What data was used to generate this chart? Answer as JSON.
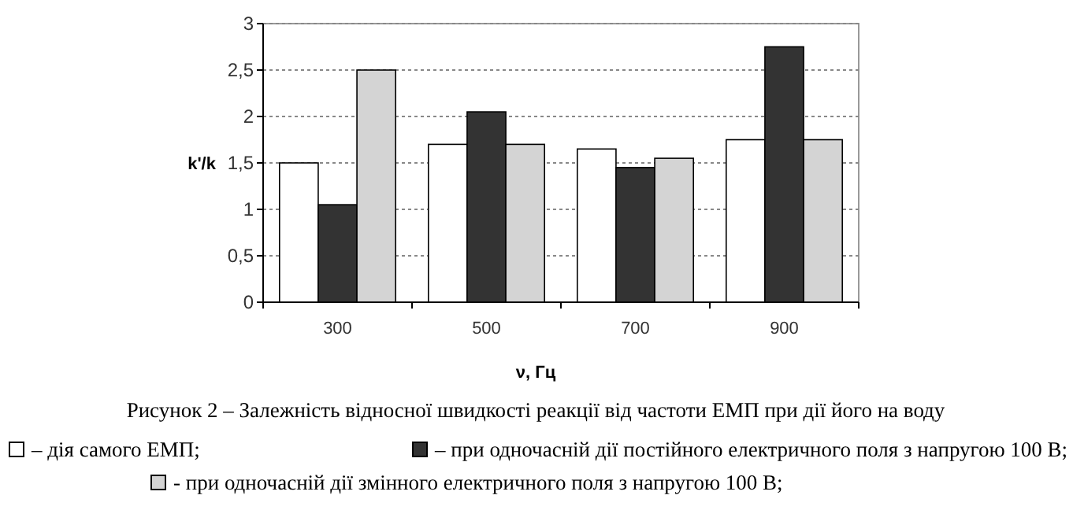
{
  "chart_data": {
    "type": "bar",
    "title": "Рисунок 2 – Залежність відносної швидкості реакції від частоти  ЕМП при дії його на воду",
    "xlabel": "ν, Гц",
    "ylabel": "k'/k",
    "categories": [
      "300",
      "500",
      "700",
      "900"
    ],
    "series": [
      {
        "name": "– дія самого ЕМП;",
        "color": "#ffffff",
        "values": [
          1.5,
          1.7,
          1.65,
          1.75
        ]
      },
      {
        "name": "– при одночасній дії постійного електричного поля з напругою 100 В;",
        "color": "#333333",
        "values": [
          1.05,
          2.05,
          1.45,
          2.75
        ]
      },
      {
        "name": "- при одночасній дії змінного електричного поля з напругою 100 В;",
        "color": "#d4d4d4",
        "values": [
          2.5,
          1.7,
          1.55,
          1.75
        ]
      }
    ],
    "ylim": [
      0,
      3
    ],
    "yticks": [
      0,
      {
        "value": 0.5,
        "label": "0,5"
      },
      1,
      {
        "value": 1.5,
        "label": "1,5"
      },
      2,
      {
        "value": 2.5,
        "label": "2,5"
      },
      3
    ],
    "grid": "y",
    "legend": "bottom"
  }
}
